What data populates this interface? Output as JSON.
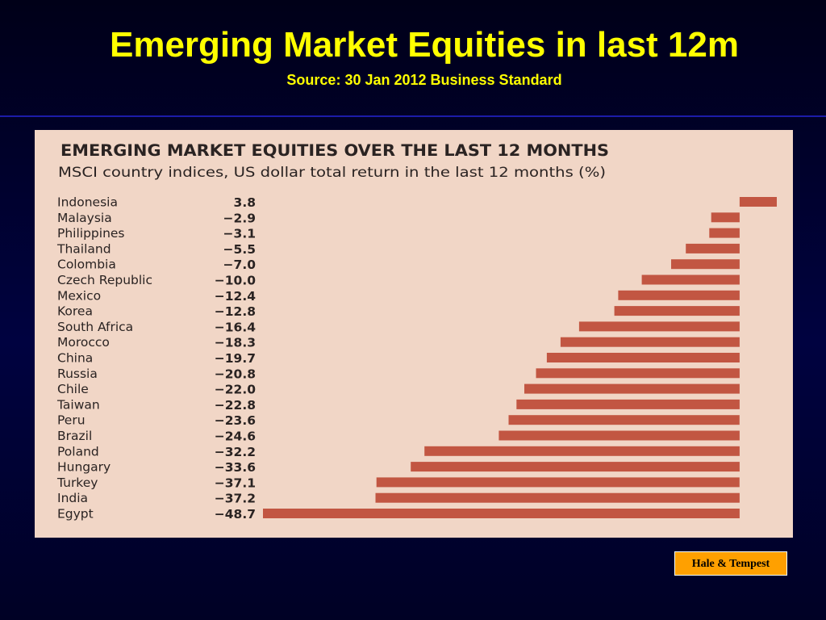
{
  "slide": {
    "title": "Emerging Market Equities in last 12m",
    "subtitle": "Source: 30 Jan 2012 Business Standard",
    "badge": "Hale & Tempest"
  },
  "colors": {
    "title_text": "#ffff00",
    "clipping_background": "#f1d6c6",
    "bar_fill": "#c25642",
    "badge_background": "#ffa000"
  },
  "chart_data": {
    "type": "bar",
    "orientation": "horizontal",
    "title": "EMERGING MARKET EQUITIES OVER THE LAST 12 MONTHS",
    "subtitle": "MSCI country indices, US dollar total return in the last 12 months (%)",
    "categories": [
      "Indonesia",
      "Malaysia",
      "Philippines",
      "Thailand",
      "Colombia",
      "Czech Republic",
      "Mexico",
      "Korea",
      "South Africa",
      "Morocco",
      "China",
      "Russia",
      "Chile",
      "Taiwan",
      "Peru",
      "Brazil",
      "Poland",
      "Hungary",
      "Turkey",
      "India",
      "Egypt"
    ],
    "values": [
      3.8,
      -2.9,
      -3.1,
      -5.5,
      -7.0,
      -10.0,
      -12.4,
      -12.8,
      -16.4,
      -18.3,
      -19.7,
      -20.8,
      -22.0,
      -22.8,
      -23.6,
      -24.6,
      -32.2,
      -33.6,
      -37.1,
      -37.2,
      -48.7
    ],
    "value_labels": [
      "3.8",
      "−2.9",
      "−3.1",
      "−5.5",
      "−7.0",
      "−10.0",
      "−12.4",
      "−12.8",
      "−16.4",
      "−18.3",
      "−19.7",
      "−20.8",
      "−22.0",
      "−22.8",
      "−23.6",
      "−24.6",
      "−32.2",
      "−33.6",
      "−37.1",
      "−37.2",
      "−48.7"
    ],
    "xlim": [
      -48.7,
      3.8
    ],
    "grid": false,
    "legend": false
  }
}
